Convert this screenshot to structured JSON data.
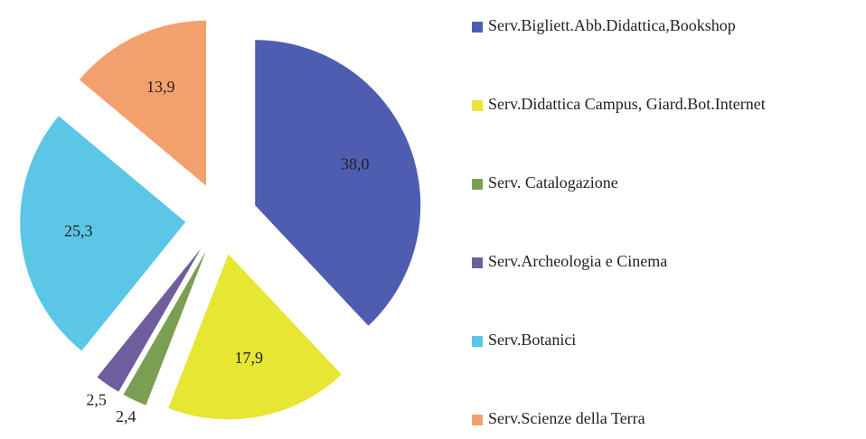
{
  "chart_data": {
    "type": "pie",
    "categories": [
      "Serv.Bigliett.Abb.Didattica,Bookshop",
      "Serv.Didattica Campus, Giard.Bot.Internet",
      "Serv. Catalogazione",
      "Serv.Archeologia e Cinema",
      "Serv.Botanici",
      "Serv.Scienze della Terra"
    ],
    "values": [
      38.0,
      17.9,
      2.4,
      2.5,
      25.3,
      13.9
    ],
    "value_labels": [
      "38,0",
      "17,9",
      "2,4",
      "2,5",
      "25,3",
      "13,9"
    ],
    "colors": [
      "#4e5db0",
      "#e6e633",
      "#7a9f52",
      "#6f5e9e",
      "#5cc6e6",
      "#f4a06e"
    ],
    "legend": "right"
  }
}
